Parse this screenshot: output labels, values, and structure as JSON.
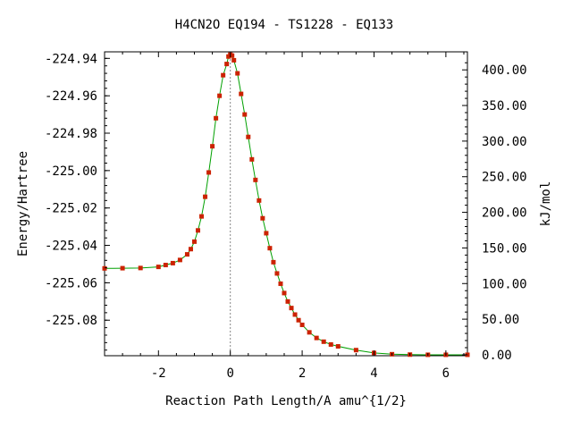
{
  "chart_data": {
    "type": "line",
    "title": "H4CN2O   EQ194 - TS1228 - EQ133",
    "xlabel": "Reaction Path Length/A amu^{1/2}",
    "ylabel": "Energy/Hartree",
    "y2label": "kJ/mol",
    "xlim": [
      -3.5,
      6.6
    ],
    "ylim": [
      -225.099,
      -224.9365
    ],
    "x_ticks": [
      -2,
      0,
      2,
      4,
      6
    ],
    "x_tick_labels": [
      "-2",
      "0",
      "2",
      "4",
      "6"
    ],
    "y_ticks": [
      -224.94,
      -224.96,
      -224.98,
      -225.0,
      -225.02,
      -225.04,
      -225.06,
      -225.08
    ],
    "y_tick_labels": [
      "-224.94",
      "-224.96",
      "-224.98",
      "-225.00",
      "-225.02",
      "-225.04",
      "-225.06",
      "-225.08"
    ],
    "y2_reference_hartree": -225.0985,
    "y2_ticks": [
      0,
      50,
      100,
      150,
      200,
      250,
      300,
      350,
      400
    ],
    "y2_tick_labels": [
      "0.00",
      "50.00",
      "100.00",
      "150.00",
      "200.00",
      "250.00",
      "300.00",
      "350.00",
      "400.00"
    ],
    "ts_marker_x": 0,
    "grid": false,
    "legend": "none",
    "colors": {
      "line": "#00a000",
      "marker": "#cc2200",
      "ts_line": "#888888"
    },
    "series": [
      {
        "x": [
          -3.5,
          -3.0,
          -2.5,
          -2.0,
          -1.8,
          -1.6,
          -1.4,
          -1.2,
          -1.1,
          -1.0,
          -0.9,
          -0.8,
          -0.7,
          -0.6,
          -0.5,
          -0.4,
          -0.3,
          -0.2,
          -0.1,
          -0.05,
          0.0,
          0.05,
          0.1,
          0.2,
          0.3,
          0.4,
          0.5,
          0.6,
          0.7,
          0.8,
          0.9,
          1.0,
          1.1,
          1.2,
          1.3,
          1.4,
          1.5,
          1.6,
          1.7,
          1.8,
          1.9,
          2.0,
          2.2,
          2.4,
          2.6,
          2.8,
          3.0,
          3.5,
          4.0,
          4.5,
          5.0,
          5.5,
          6.0,
          6.6
        ],
        "y": [
          -225.0523,
          -225.0522,
          -225.0521,
          -225.0515,
          -225.0505,
          -225.0495,
          -225.0478,
          -225.0448,
          -225.042,
          -225.038,
          -225.032,
          -225.0245,
          -225.014,
          -225.001,
          -224.987,
          -224.972,
          -224.96,
          -224.949,
          -224.943,
          -224.939,
          -224.938,
          -224.9385,
          -224.941,
          -224.948,
          -224.959,
          -224.97,
          -224.982,
          -224.994,
          -225.005,
          -225.016,
          -225.0255,
          -225.0335,
          -225.0415,
          -225.049,
          -225.055,
          -225.0605,
          -225.0655,
          -225.07,
          -225.0735,
          -225.077,
          -225.08,
          -225.0825,
          -225.0865,
          -225.0895,
          -225.0915,
          -225.093,
          -225.094,
          -225.096,
          -225.0975,
          -225.0982,
          -225.0984,
          -225.0985,
          -225.0985,
          -225.0985
        ]
      }
    ]
  }
}
